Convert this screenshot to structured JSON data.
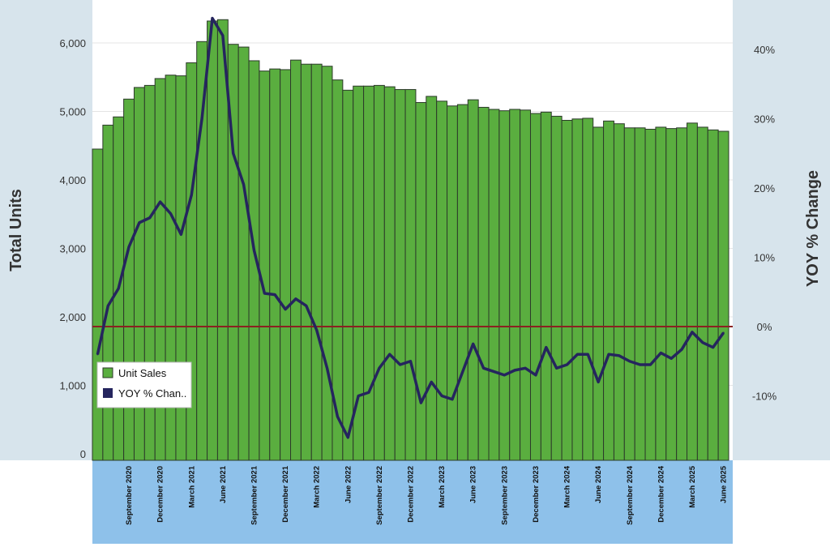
{
  "colors": {
    "side_panel": "#d7e4ec",
    "xaxis_panel": "#8ec1ea",
    "bar_fill": "#5aae3f",
    "bar_stroke": "#2c3a2a",
    "line": "#25255e",
    "zero_line": "#8b2121",
    "grid": "#e4e4e4"
  },
  "chart_data": {
    "type": "bar+line",
    "title": "",
    "ylabel_left": "Total Units",
    "ylabel_right": "YOY % Change",
    "ylim_left": [
      0,
      6600
    ],
    "ylim_right": [
      -18.5,
      47
    ],
    "left_ticks": [
      {
        "value": 0,
        "label": "0"
      },
      {
        "value": 1000,
        "label": "1,000"
      },
      {
        "value": 2000,
        "label": "2,000"
      },
      {
        "value": 3000,
        "label": "3,000"
      },
      {
        "value": 4000,
        "label": "4,000"
      },
      {
        "value": 5000,
        "label": "5,000"
      },
      {
        "value": 6000,
        "label": "6,000"
      }
    ],
    "right_ticks": [
      {
        "value": -10,
        "label": "-10%"
      },
      {
        "value": 0,
        "label": "0%"
      },
      {
        "value": 10,
        "label": "10%"
      },
      {
        "value": 20,
        "label": "20%"
      },
      {
        "value": 30,
        "label": "30%"
      },
      {
        "value": 40,
        "label": "40%"
      }
    ],
    "x_tick_labels": [
      {
        "index": 3,
        "label": "September 2020"
      },
      {
        "index": 6,
        "label": "December 2020"
      },
      {
        "index": 9,
        "label": "March 2021"
      },
      {
        "index": 12,
        "label": "June 2021"
      },
      {
        "index": 15,
        "label": "September 2021"
      },
      {
        "index": 18,
        "label": "December 2021"
      },
      {
        "index": 21,
        "label": "March 2022"
      },
      {
        "index": 24,
        "label": "June 2022"
      },
      {
        "index": 27,
        "label": "September 2022"
      },
      {
        "index": 30,
        "label": "December 2022"
      },
      {
        "index": 33,
        "label": "March 2023"
      },
      {
        "index": 36,
        "label": "June 2023"
      },
      {
        "index": 39,
        "label": "September 2023"
      },
      {
        "index": 42,
        "label": "December 2023"
      },
      {
        "index": 45,
        "label": "March 2024"
      },
      {
        "index": 48,
        "label": "June 2024"
      },
      {
        "index": 51,
        "label": "September 2024"
      },
      {
        "index": 54,
        "label": "December 2024"
      },
      {
        "index": 57,
        "label": "March 2025"
      },
      {
        "index": 60,
        "label": "June 2025"
      }
    ],
    "series": [
      {
        "name": "Unit Sales",
        "type": "bar",
        "axis": "left",
        "values": [
          4450,
          4800,
          4920,
          5180,
          5350,
          5380,
          5480,
          5530,
          5520,
          5710,
          6020,
          6320,
          6340,
          5980,
          5940,
          5740,
          5590,
          5620,
          5610,
          5750,
          5690,
          5690,
          5660,
          5460,
          5310,
          5370,
          5370,
          5380,
          5360,
          5320,
          5320,
          5130,
          5220,
          5150,
          5080,
          5100,
          5170,
          5060,
          5030,
          5010,
          5030,
          5020,
          4970,
          4990,
          4930,
          4870,
          4890,
          4900,
          4770,
          4860,
          4820,
          4760,
          4760,
          4740,
          4770,
          4750,
          4760,
          4830,
          4770,
          4730,
          4710
        ]
      },
      {
        "name": "YOY % Change",
        "type": "line",
        "axis": "right",
        "values": [
          -4.0,
          3.0,
          5.5,
          11.5,
          15.0,
          15.7,
          18.0,
          16.3,
          13.3,
          19.0,
          30.0,
          44.5,
          42.0,
          25.0,
          20.5,
          11.0,
          4.8,
          4.6,
          2.5,
          4.0,
          3.0,
          -0.5,
          -6.0,
          -13.0,
          -16.0,
          -10.0,
          -9.5,
          -6.0,
          -4.0,
          -5.5,
          -5.0,
          -11.0,
          -8.0,
          -10.0,
          -10.5,
          -6.5,
          -2.5,
          -6.0,
          -6.5,
          -7.0,
          -6.3,
          -6.0,
          -7.0,
          -3.0,
          -6.0,
          -5.5,
          -4.0,
          -4.0,
          -8.0,
          -4.0,
          -4.2,
          -5.0,
          -5.5,
          -5.5,
          -3.8,
          -4.6,
          -3.3,
          -0.8,
          -2.3,
          -3.0,
          -0.9
        ]
      }
    ],
    "legend": {
      "position": "bottom-left",
      "entries": [
        "Unit Sales",
        "YOY % Chan.."
      ]
    }
  }
}
